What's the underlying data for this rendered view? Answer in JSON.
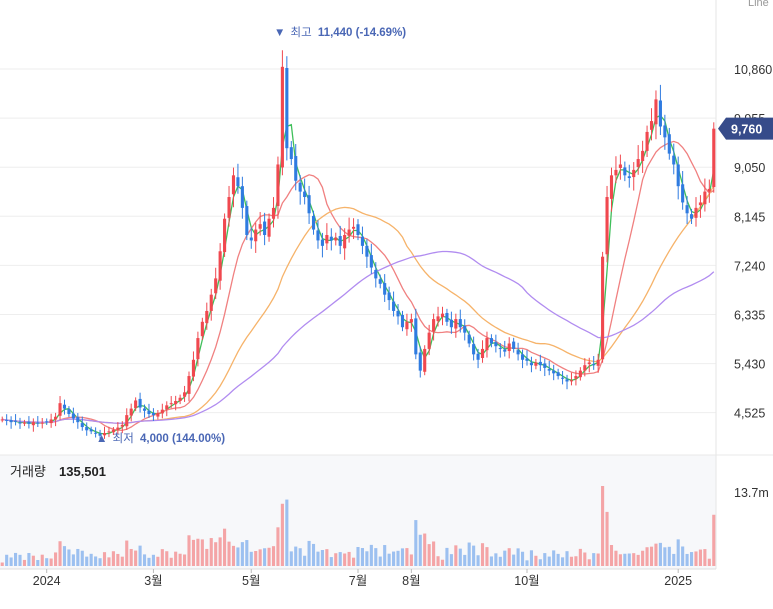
{
  "corner_label": "Line",
  "chart_data": {
    "type": "line",
    "price_axis": {
      "ticks": [
        "10,860",
        "9,955",
        "9,050",
        "8,145",
        "7,240",
        "6,335",
        "5,430",
        "4,525"
      ],
      "tick_values": [
        10860,
        9955,
        9050,
        8145,
        7240,
        6335,
        5430,
        4525
      ],
      "ylim": [
        3800,
        11800
      ],
      "current_price_label": "9,760",
      "current_price": 9760
    },
    "time_axis": {
      "labels": [
        "2024",
        "3월",
        "5월",
        "7월",
        "8월",
        "10월",
        "2025"
      ],
      "label_positions_index": [
        10,
        34,
        56,
        80,
        92,
        118,
        152
      ]
    },
    "annotations": {
      "high": {
        "arrow": "▼",
        "label": "최고",
        "value": "11,440 (-14.69%)",
        "price": 11440,
        "index": 62
      },
      "low": {
        "arrow": "▲",
        "label": "최저",
        "value": "4,000 (144.00%)",
        "price": 4000,
        "index": 22
      }
    },
    "volume": {
      "title": "거래량",
      "value": "135,501",
      "axis_label": "13.7m",
      "axis_value": 13700000
    },
    "series": [
      {
        "kind": "close",
        "values": [
          4400,
          4380,
          4350,
          4360,
          4330,
          4340,
          4320,
          4350,
          4330,
          4340,
          4350,
          4400,
          4450,
          4700,
          4600,
          4500,
          4420,
          4350,
          4260,
          4200,
          4180,
          4150,
          4100,
          4150,
          4180,
          4210,
          4250,
          4300,
          4480,
          4600,
          4750,
          4620,
          4560,
          4500,
          4480,
          4520,
          4580,
          4660,
          4700,
          4740,
          4800,
          4900,
          5200,
          5500,
          5900,
          6200,
          6400,
          6700,
          7000,
          7500,
          8100,
          8500,
          8900,
          8700,
          8300,
          7800,
          7700,
          7900,
          8000,
          7800,
          8100,
          8300,
          9100,
          10900,
          9400,
          9200,
          8800,
          8600,
          8500,
          8200,
          7900,
          7700,
          7600,
          7800,
          7700,
          7750,
          7600,
          7800,
          7900,
          7950,
          7800,
          7600,
          7400,
          7200,
          7000,
          6900,
          6700,
          6600,
          6400,
          6300,
          6100,
          6200,
          6250,
          5600,
          5300,
          5700,
          6000,
          6250,
          6300,
          6350,
          6200,
          6100,
          6250,
          6100,
          6000,
          5800,
          5600,
          5500,
          5700,
          5900,
          5800,
          5750,
          5700,
          5650,
          5800,
          5700,
          5600,
          5500,
          5480,
          5400,
          5450,
          5400,
          5350,
          5300,
          5250,
          5200,
          5150,
          5100,
          5120,
          5200,
          5300,
          5400,
          5450,
          5400,
          5500,
          7400,
          8500,
          8900,
          9000,
          9100,
          8900,
          8850,
          9000,
          9200,
          9350,
          9700,
          9900,
          10300,
          9800,
          9600,
          9300,
          9100,
          8700,
          8400,
          8200,
          8100,
          8300,
          8400,
          8600,
          8650,
          9760
        ]
      },
      {
        "kind": "ma5",
        "color": "#3fbf5a"
      },
      {
        "kind": "ma20",
        "color": "#f08080"
      },
      {
        "kind": "ma60",
        "color": "#f6b36a"
      },
      {
        "kind": "ma120",
        "color": "#b18cf0"
      }
    ],
    "colors": {
      "up": "#f0484f",
      "down": "#2f7be0",
      "grid": "#eeeeee",
      "badge": "#364b8a",
      "annotation": "#4a67b5"
    }
  }
}
